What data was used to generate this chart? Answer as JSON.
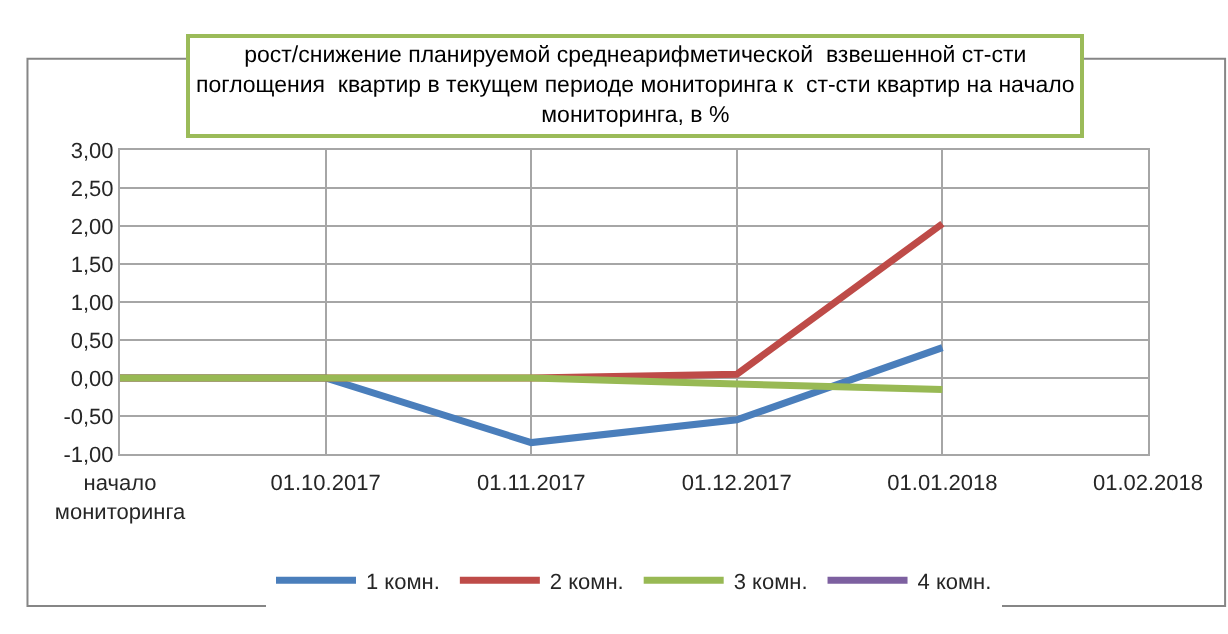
{
  "chart_data": {
    "type": "line",
    "title": "рост/снижение планируемой среднеарифметической  взвешенной ст-сти\nпоглощения  квартир в текущем периоде мониторинга к  ст-сти квартир на начало\nмониторинга, в %",
    "categories": [
      "начало\nмониторинга",
      "01.10.2017",
      "01.11.2017",
      "01.12.2017",
      "01.01.2018",
      "01.02.2018"
    ],
    "series": [
      {
        "name": "1 комн.",
        "color": "#4a7ebb",
        "values": [
          0,
          0,
          -0.85,
          -0.55,
          0.4,
          null
        ]
      },
      {
        "name": "2 комн.",
        "color": "#be4b48",
        "values": [
          0,
          0,
          0,
          0.05,
          2.03,
          null
        ]
      },
      {
        "name": "3 комн.",
        "color": "#98b954",
        "values": [
          0,
          0,
          0,
          -0.08,
          -0.15,
          null
        ]
      },
      {
        "name": "4 комн.",
        "color": "#7d60a0",
        "values": [
          null,
          null,
          null,
          null,
          null,
          null
        ]
      }
    ],
    "ylim": [
      -1,
      3
    ],
    "yticks": [
      {
        "value": -1,
        "label": "-1,00"
      },
      {
        "value": -0.5,
        "label": "-0,50"
      },
      {
        "value": 0,
        "label": "0,00"
      },
      {
        "value": 0.5,
        "label": "0,50"
      },
      {
        "value": 1,
        "label": "1,00"
      },
      {
        "value": 1.5,
        "label": "1,50"
      },
      {
        "value": 2,
        "label": "2,00"
      },
      {
        "value": 2.5,
        "label": "2,50"
      },
      {
        "value": 3,
        "label": "3,00"
      }
    ],
    "grid": true,
    "legend": "bottom",
    "marker": "none",
    "line_style": "solid"
  }
}
